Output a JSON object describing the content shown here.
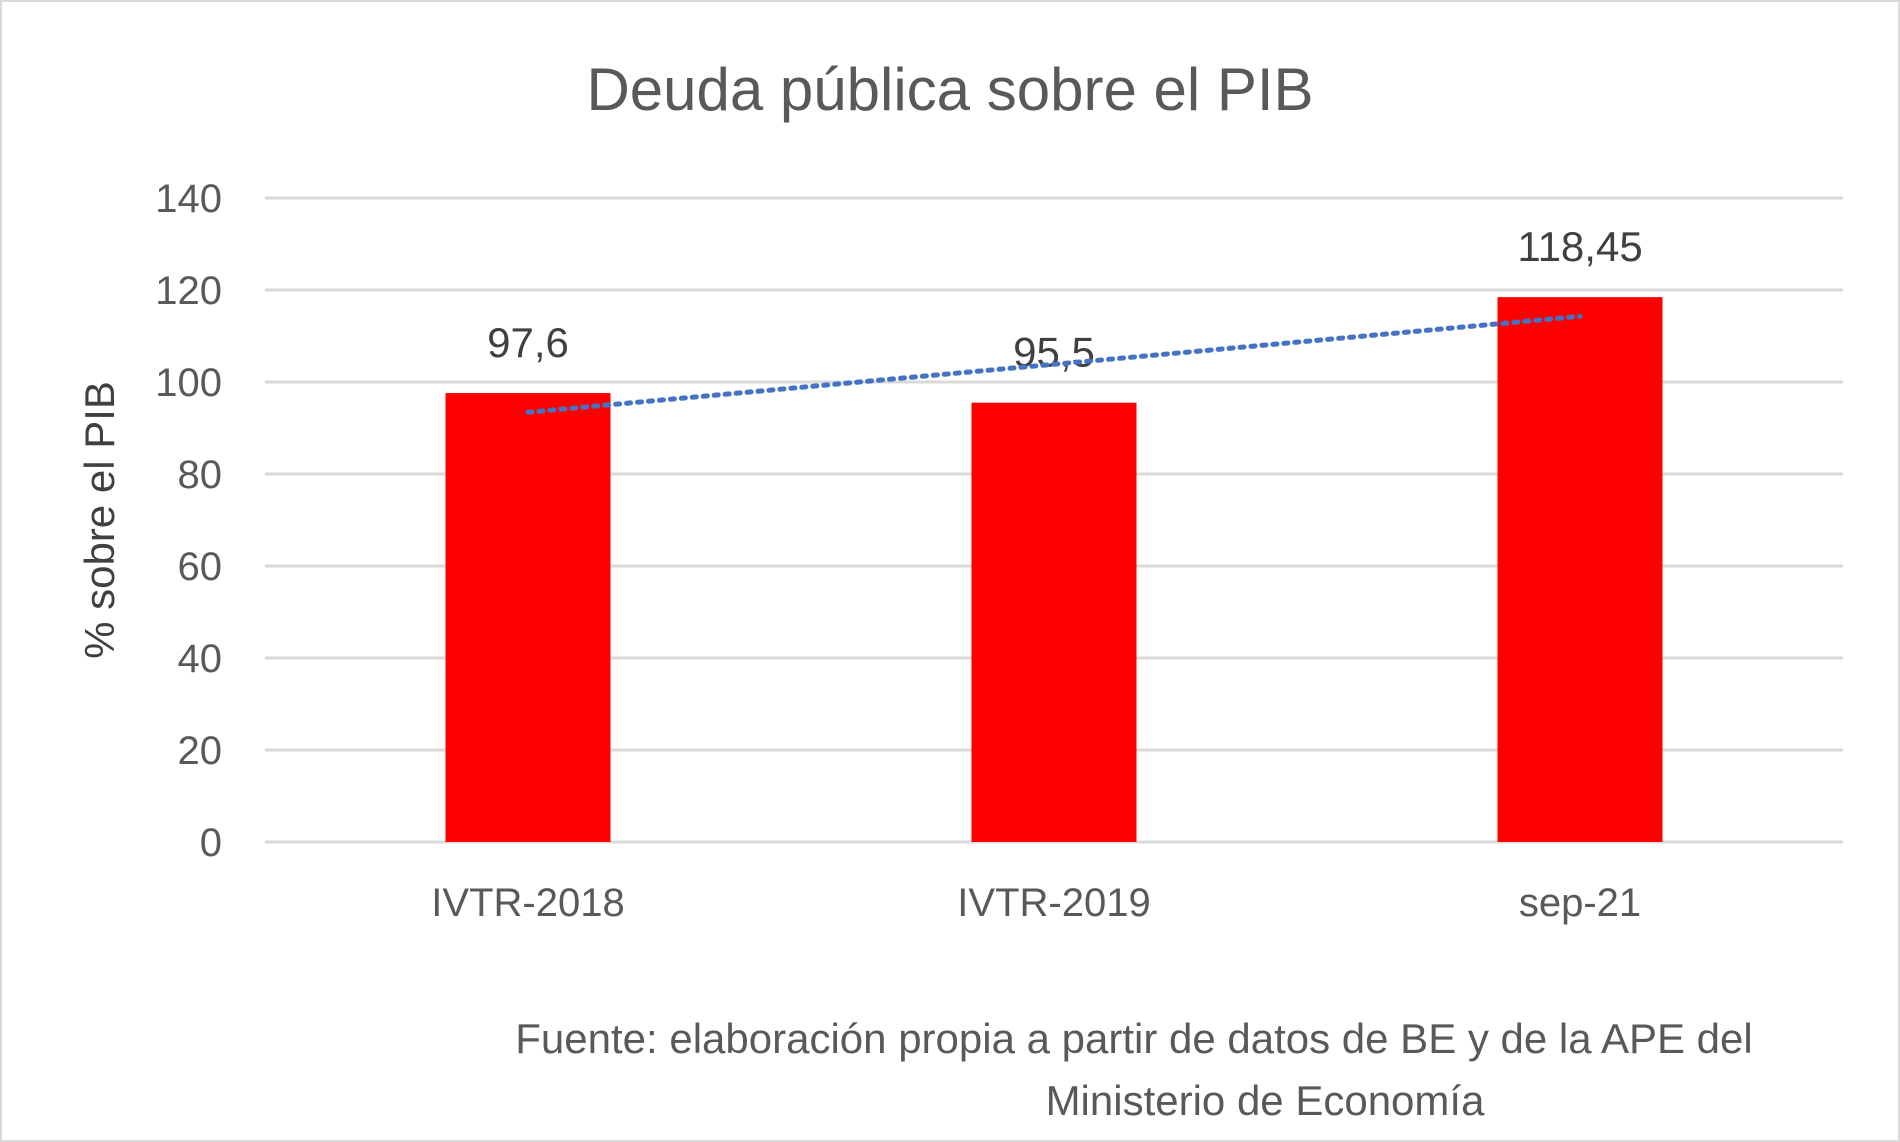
{
  "chart_data": {
    "type": "bar",
    "title": "Deuda pública sobre el PIB",
    "ylabel": "% sobre el PIB",
    "xlabel": "",
    "categories": [
      "IVTR-2018",
      "IVTR-2019",
      "sep-21"
    ],
    "values": [
      97.6,
      95.5,
      118.45
    ],
    "data_labels": [
      "97,6",
      "95,5",
      "118,45"
    ],
    "ylim": [
      0,
      140
    ],
    "yticks": [
      0,
      20,
      40,
      60,
      80,
      100,
      120,
      140
    ],
    "grid": true,
    "bar_color": "#ff0000",
    "trendline": {
      "type": "linear",
      "style": "dotted",
      "color": "#4472c4"
    }
  },
  "source_note": {
    "line1": "Fuente: elaboración propia a partir de datos de BE y de la APE del",
    "line2": "Ministerio de Economía"
  }
}
